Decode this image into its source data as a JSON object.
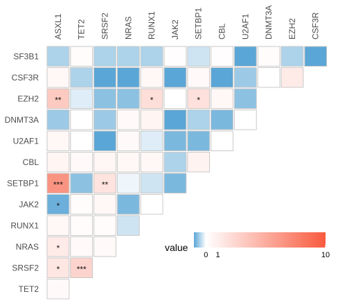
{
  "chart_data": {
    "type": "heatmap",
    "shape": "lower-triangle",
    "columns": [
      "ASXL1",
      "TET2",
      "SRSF2",
      "NRAS",
      "RUNX1",
      "JAK2",
      "SETBP1",
      "CBL",
      "U2AF1",
      "DNMT3A",
      "EZH2",
      "CSF3R"
    ],
    "rows": [
      "SF3B1",
      "CSF3R",
      "EZH2",
      "DNMT3A",
      "U2AF1",
      "CBL",
      "SETBP1",
      "JAK2",
      "RUNX1",
      "NRAS",
      "SRSF2",
      "TET2"
    ],
    "values": [
      [
        -0.5,
        0.2,
        -0.5,
        -0.5,
        -0.5,
        0.1,
        -0.3,
        0.1,
        -1.0,
        0.2,
        -0.5,
        -1.0
      ],
      [
        0.4,
        -0.5,
        -1.0,
        -1.0,
        0.4,
        -1.0,
        0.3,
        -1.0,
        -0.6,
        0.0,
        1.2
      ],
      [
        3.2,
        -0.2,
        -0.7,
        -0.7,
        2.0,
        0.0,
        1.8,
        0.4,
        -0.7
      ],
      [
        -0.6,
        0.0,
        -0.6,
        0.3,
        0.6,
        -1.0,
        -0.5,
        -0.8,
        0.0
      ],
      [
        0.4,
        0.0,
        -1.0,
        0.3,
        -0.2,
        -0.8,
        -0.8,
        0.0
      ],
      [
        0.6,
        0.3,
        0.5,
        0.4,
        0.4,
        -0.5,
        0.7
      ],
      [
        6.5,
        -0.7,
        1.7,
        -0.1,
        -0.3,
        -0.8
      ],
      [
        -0.9,
        0.2,
        0.4,
        -0.8,
        0.0
      ],
      [
        0.4,
        0.2,
        0.2,
        -0.3
      ],
      [
        1.2,
        0.3,
        0.3
      ],
      [
        1.5,
        2.6
      ],
      [
        0.3
      ]
    ],
    "significance": [
      [
        "",
        "",
        "",
        "",
        "",
        "",
        "",
        "",
        "",
        "",
        "",
        ""
      ],
      [
        "",
        "",
        "",
        "",
        "",
        "",
        "",
        "",
        "",
        "",
        ""
      ],
      [
        "**",
        "",
        "",
        "",
        "*",
        "",
        "*",
        "",
        ""
      ],
      [
        "",
        "",
        "",
        "",
        "",
        "",
        "",
        "",
        ""
      ],
      [
        "",
        "",
        "",
        "",
        "",
        "",
        "",
        ""
      ],
      [
        "",
        "",
        "",
        "",
        "",
        "",
        ""
      ],
      [
        "***",
        "",
        "**",
        "",
        "",
        ""
      ],
      [
        "*",
        "",
        "",
        "",
        ""
      ],
      [
        "",
        "",
        "",
        ""
      ],
      [
        "*",
        "",
        ""
      ],
      [
        "*",
        "***"
      ],
      [
        ""
      ]
    ],
    "legend": {
      "title": "value",
      "min": -1,
      "max": 10,
      "ticks": [
        {
          "value": 0,
          "label": "0"
        },
        {
          "value": 1,
          "label": "1"
        },
        {
          "value": 10,
          "label": "10"
        }
      ]
    },
    "colors": {
      "negative": "#5aa6d6",
      "zero": "#ffffff",
      "positive": "#f85a3e",
      "cell_border": "#c8c8c8"
    }
  }
}
